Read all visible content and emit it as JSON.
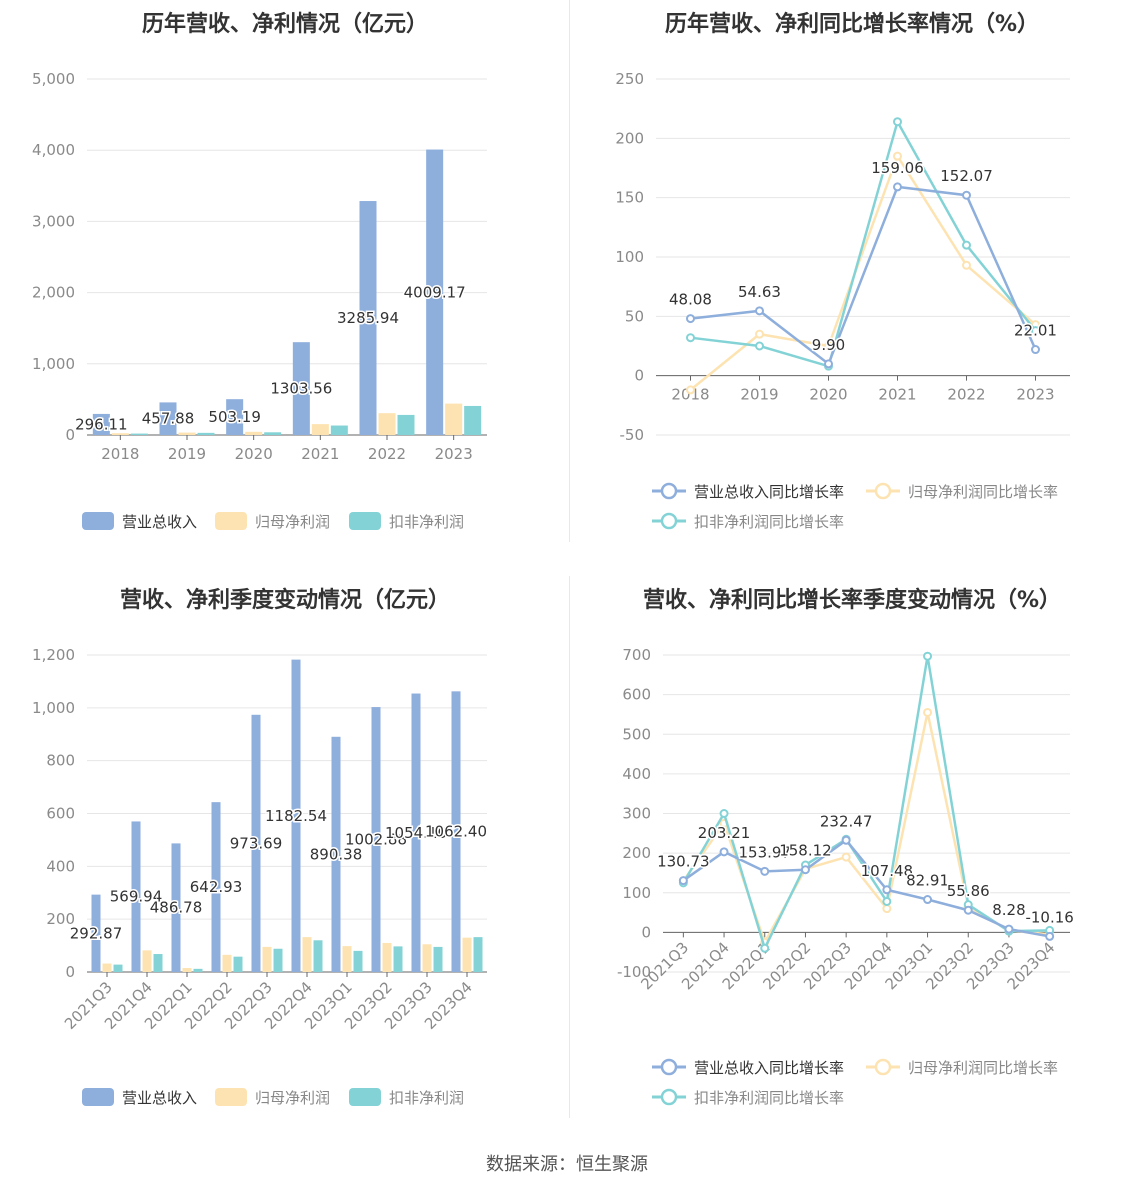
{
  "footer": {
    "source": "数据来源：恒生聚源"
  },
  "colors": {
    "revenue": "#8eaedc",
    "net_profit": "#fde3b1",
    "deducted": "#83d3d6"
  },
  "chart_data": [
    {
      "type": "bar",
      "title": "历年营收、净利情况（亿元）",
      "categories": [
        "2018",
        "2019",
        "2020",
        "2021",
        "2022",
        "2023"
      ],
      "ylim": [
        0,
        5000
      ],
      "yticks": [
        "0",
        "1,000",
        "2,000",
        "3,000",
        "4,000",
        "5,000"
      ],
      "legend_position": "bottom",
      "series": [
        {
          "name": "营业总收入",
          "values": [
            296.11,
            457.88,
            503.19,
            1303.56,
            3285.94,
            4009.17
          ],
          "labels": [
            "296.11",
            "457.88",
            "503.19",
            "1303.56",
            "3285.94",
            "4009.17"
          ]
        },
        {
          "name": "归母净利润",
          "values": [
            25,
            34,
            45,
            153,
            307,
            441
          ]
        },
        {
          "name": "扣非净利润",
          "values": [
            20,
            30,
            38,
            133,
            282,
            408
          ]
        }
      ]
    },
    {
      "type": "line",
      "title": "历年营收、净利同比增长率情况（%）",
      "categories": [
        "2018",
        "2019",
        "2020",
        "2021",
        "2022",
        "2023"
      ],
      "ylim": [
        -50,
        250
      ],
      "yticks": [
        "-50",
        "0",
        "50",
        "100",
        "150",
        "200",
        "250"
      ],
      "legend_position": "bottom",
      "series": [
        {
          "name": "营业总收入同比增长率",
          "values": [
            48.08,
            54.63,
            9.9,
            159.06,
            152.07,
            22.01
          ],
          "labels": [
            "48.08",
            "54.63",
            "9.90",
            "159.06",
            "152.07",
            "22.01"
          ]
        },
        {
          "name": "归母净利润同比增长率",
          "values": [
            -12,
            35,
            25,
            185,
            93,
            43
          ]
        },
        {
          "name": "扣非净利润同比增长率",
          "values": [
            32,
            25,
            8,
            214,
            110,
            38
          ]
        }
      ]
    },
    {
      "type": "bar",
      "title": "营收、净利季度变动情况（亿元）",
      "categories": [
        "2021Q3",
        "2021Q4",
        "2022Q1",
        "2022Q2",
        "2022Q3",
        "2022Q4",
        "2023Q1",
        "2023Q2",
        "2023Q3",
        "2023Q4"
      ],
      "ylim": [
        0,
        1200
      ],
      "yticks": [
        "0",
        "200",
        "400",
        "600",
        "800",
        "1,000",
        "1,200"
      ],
      "legend_position": "bottom",
      "series": [
        {
          "name": "营业总收入",
          "values": [
            292.87,
            569.94,
            486.78,
            642.93,
            973.69,
            1182.54,
            890.38,
            1002.88,
            1054.1,
            1062.4
          ],
          "labels": [
            "292.87",
            "569.94",
            "486.78",
            "642.93",
            "973.69",
            "1182.54",
            "890.38",
            "1002.88",
            "1054.10",
            "1062.40"
          ]
        },
        {
          "name": "归母净利润",
          "values": [
            32,
            82,
            15,
            65,
            95,
            132,
            98,
            110,
            105,
            130
          ]
        },
        {
          "name": "扣非净利润",
          "values": [
            28,
            68,
            12,
            58,
            88,
            120,
            80,
            97,
            95,
            132
          ]
        }
      ]
    },
    {
      "type": "line",
      "title": "营收、净利同比增长率季度变动情况（%）",
      "categories": [
        "2021Q3",
        "2021Q4",
        "2022Q1",
        "2022Q2",
        "2022Q3",
        "2022Q4",
        "2023Q1",
        "2023Q2",
        "2023Q3",
        "2023Q4"
      ],
      "ylim": [
        -100,
        700
      ],
      "yticks": [
        "-100",
        "0",
        "100",
        "200",
        "300",
        "400",
        "500",
        "600",
        "700"
      ],
      "legend_position": "bottom",
      "series": [
        {
          "name": "营业总收入同比增长率",
          "values": [
            130.73,
            203.21,
            153.97,
            158.12,
            232.47,
            107.48,
            82.91,
            55.86,
            8.28,
            -10.16
          ],
          "labels": [
            "130.73",
            "203.21",
            "153.97",
            "158.12",
            "232.47",
            "107.48",
            "82.91",
            "55.86",
            "8.28",
            "-10.16"
          ]
        },
        {
          "name": "归母净利润同比增长率",
          "values": [
            130,
            275,
            -25,
            160,
            190,
            60,
            555,
            65,
            5,
            -5
          ]
        },
        {
          "name": "扣非净利润同比增长率",
          "values": [
            125,
            300,
            -40,
            170,
            235,
            78,
            697,
            70,
            3,
            5
          ]
        }
      ]
    }
  ]
}
